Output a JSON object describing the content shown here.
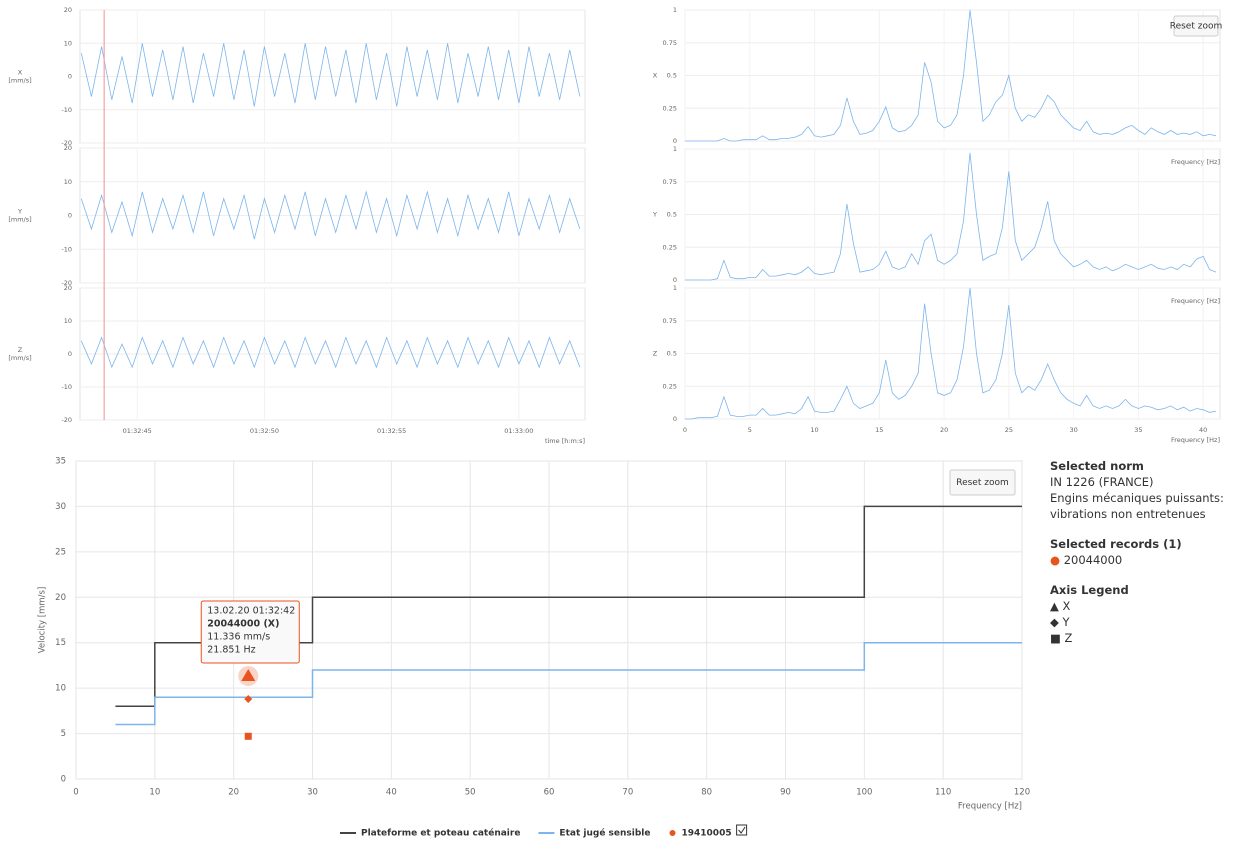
{
  "chart_data": [
    {
      "type": "line",
      "xlabel": "time [h:m:s]",
      "x": [
        5562.8,
        5563.2,
        5563.6,
        5564.0,
        5564.4,
        5564.8,
        5565.2,
        5565.6,
        5566.0,
        5566.4,
        5566.8,
        5567.2,
        5567.6,
        5568.0,
        5568.4,
        5568.8,
        5569.2,
        5569.6,
        5570.0,
        5570.4,
        5570.8,
        5571.2,
        5571.6,
        5572.0,
        5572.4,
        5572.8,
        5573.2,
        5573.6,
        5574.0,
        5574.4,
        5574.8,
        5575.2,
        5575.6,
        5576.0,
        5576.4,
        5576.8,
        5577.2,
        5577.6,
        5578.0,
        5578.4,
        5578.8,
        5579.2,
        5579.6,
        5580.0,
        5580.4,
        5580.8,
        5581.2,
        5581.6,
        5582.0,
        5582.4
      ],
      "xlim": [
        5562.75,
        5582.6
      ],
      "xticks": [
        {
          "value": 5565,
          "label": "01:32:45"
        },
        {
          "value": 5570,
          "label": "01:32:50"
        },
        {
          "value": 5575,
          "label": "01:32:55"
        },
        {
          "value": 5580,
          "label": "01:33:00"
        }
      ],
      "ylim": [
        -20,
        20
      ],
      "yticks": [
        20,
        10,
        0,
        -10,
        -20
      ],
      "cursor_x": 5563.7,
      "cursor_color": "#f5a3a3",
      "grid": true,
      "panels": [
        {
          "name": "X",
          "unit": "[mm/s]",
          "color": "#7cb5ec",
          "values": [
            7,
            -6,
            9,
            -7,
            6,
            -8,
            10,
            -6,
            8,
            -7,
            9,
            -8,
            7,
            -6,
            10,
            -7,
            8,
            -9,
            9,
            -6,
            7,
            -8,
            10,
            -7,
            9,
            -6,
            8,
            -8,
            10,
            -7,
            7,
            -9,
            9,
            -6,
            8,
            -7,
            10,
            -8,
            7,
            -6,
            9,
            -7,
            8,
            -8,
            9,
            -6,
            7,
            -7,
            8,
            -6
          ]
        },
        {
          "name": "Y",
          "unit": "[mm/s]",
          "color": "#7cb5ec",
          "values": [
            5,
            -4,
            6,
            -5,
            4,
            -6,
            7,
            -5,
            5,
            -4,
            6,
            -5,
            7,
            -6,
            5,
            -4,
            6,
            -7,
            5,
            -5,
            6,
            -4,
            7,
            -6,
            5,
            -5,
            6,
            -4,
            7,
            -5,
            5,
            -6,
            6,
            -4,
            7,
            -5,
            5,
            -6,
            6,
            -4,
            5,
            -5,
            7,
            -6,
            5,
            -4,
            6,
            -5,
            5,
            -4
          ]
        },
        {
          "name": "Z",
          "unit": "[mm/s]",
          "color": "#7cb5ec",
          "values": [
            4,
            -3,
            5,
            -4,
            3,
            -4,
            5,
            -3,
            4,
            -4,
            5,
            -3,
            4,
            -4,
            5,
            -3,
            4,
            -4,
            5,
            -3,
            4,
            -4,
            5,
            -3,
            4,
            -4,
            5,
            -3,
            4,
            -4,
            5,
            -3,
            4,
            -4,
            5,
            -3,
            4,
            -4,
            5,
            -3,
            4,
            -4,
            5,
            -3,
            4,
            -4,
            5,
            -3,
            4,
            -4
          ]
        }
      ]
    },
    {
      "type": "line",
      "xlabel": "Frequency [Hz]",
      "reset_zoom": "Reset zoom",
      "x": [
        0,
        0.5,
        1,
        1.5,
        2,
        2.5,
        3,
        3.5,
        4,
        4.5,
        5,
        5.5,
        6,
        6.5,
        7,
        7.5,
        8,
        8.5,
        9,
        9.5,
        10,
        10.5,
        11,
        11.5,
        12,
        12.5,
        13,
        13.5,
        14,
        14.5,
        15,
        15.5,
        16,
        16.5,
        17,
        17.5,
        18,
        18.5,
        19,
        19.5,
        20,
        20.5,
        21,
        21.5,
        22,
        22.5,
        23,
        23.5,
        24,
        24.5,
        25,
        25.5,
        26,
        26.5,
        27,
        27.5,
        28,
        28.5,
        29,
        29.5,
        30,
        30.5,
        31,
        31.5,
        32,
        32.5,
        33,
        33.5,
        34,
        34.5,
        35,
        35.5,
        36,
        36.5,
        37,
        37.5,
        38,
        38.5,
        39,
        39.5,
        40,
        40.5,
        41
      ],
      "xlim": [
        0,
        41.3
      ],
      "xticks": [
        0,
        5,
        10,
        15,
        20,
        25,
        30,
        35,
        40
      ],
      "ylim": [
        0,
        1
      ],
      "yticks": [
        0,
        0.25,
        0.5,
        0.75,
        1
      ],
      "grid": true,
      "panels": [
        {
          "name": "X",
          "color": "#7cb5ec",
          "values": [
            0,
            0,
            0,
            0,
            0,
            0,
            0.02,
            0,
            0,
            0.01,
            0.01,
            0.01,
            0.04,
            0.01,
            0.01,
            0.02,
            0.02,
            0.03,
            0.05,
            0.11,
            0.04,
            0.03,
            0.04,
            0.05,
            0.12,
            0.33,
            0.15,
            0.05,
            0.06,
            0.08,
            0.15,
            0.26,
            0.1,
            0.07,
            0.08,
            0.12,
            0.2,
            0.6,
            0.45,
            0.15,
            0.1,
            0.12,
            0.2,
            0.5,
            1,
            0.6,
            0.15,
            0.2,
            0.3,
            0.35,
            0.5,
            0.25,
            0.15,
            0.2,
            0.18,
            0.25,
            0.35,
            0.3,
            0.2,
            0.15,
            0.1,
            0.08,
            0.15,
            0.07,
            0.05,
            0.06,
            0.05,
            0.07,
            0.1,
            0.12,
            0.08,
            0.05,
            0.1,
            0.07,
            0.05,
            0.08,
            0.05,
            0.06,
            0.05,
            0.07,
            0.04,
            0.05,
            0.04
          ]
        },
        {
          "name": "Y",
          "color": "#7cb5ec",
          "values": [
            0,
            0,
            0,
            0,
            0,
            0.01,
            0.15,
            0.02,
            0.01,
            0.01,
            0.02,
            0.02,
            0.08,
            0.03,
            0.03,
            0.04,
            0.05,
            0.04,
            0.06,
            0.1,
            0.05,
            0.04,
            0.05,
            0.06,
            0.2,
            0.58,
            0.28,
            0.06,
            0.07,
            0.08,
            0.12,
            0.22,
            0.1,
            0.08,
            0.1,
            0.2,
            0.12,
            0.3,
            0.35,
            0.15,
            0.12,
            0.15,
            0.2,
            0.45,
            0.97,
            0.5,
            0.15,
            0.18,
            0.2,
            0.4,
            0.83,
            0.3,
            0.15,
            0.2,
            0.25,
            0.4,
            0.6,
            0.3,
            0.2,
            0.15,
            0.1,
            0.12,
            0.15,
            0.1,
            0.08,
            0.1,
            0.07,
            0.09,
            0.12,
            0.1,
            0.08,
            0.1,
            0.12,
            0.09,
            0.08,
            0.1,
            0.08,
            0.12,
            0.1,
            0.16,
            0.18,
            0.08,
            0.06
          ]
        },
        {
          "name": "Z",
          "color": "#7cb5ec",
          "values": [
            0,
            0,
            0.01,
            0.01,
            0.01,
            0.02,
            0.17,
            0.03,
            0.02,
            0.02,
            0.03,
            0.03,
            0.08,
            0.03,
            0.03,
            0.04,
            0.05,
            0.04,
            0.08,
            0.17,
            0.06,
            0.05,
            0.05,
            0.06,
            0.15,
            0.25,
            0.12,
            0.08,
            0.1,
            0.12,
            0.2,
            0.45,
            0.2,
            0.15,
            0.18,
            0.25,
            0.35,
            0.88,
            0.5,
            0.2,
            0.18,
            0.2,
            0.3,
            0.55,
            1,
            0.5,
            0.2,
            0.22,
            0.3,
            0.5,
            0.87,
            0.35,
            0.2,
            0.25,
            0.22,
            0.3,
            0.42,
            0.3,
            0.2,
            0.15,
            0.12,
            0.1,
            0.18,
            0.1,
            0.08,
            0.1,
            0.08,
            0.1,
            0.15,
            0.1,
            0.08,
            0.1,
            0.09,
            0.07,
            0.08,
            0.1,
            0.07,
            0.09,
            0.06,
            0.08,
            0.07,
            0.05,
            0.06
          ]
        }
      ]
    },
    {
      "type": "step",
      "xlabel": "Frequency [Hz]",
      "ylabel": "Velocity [mm/s]",
      "reset_zoom": "Reset zoom",
      "xlim": [
        0,
        120
      ],
      "xticks": [
        0,
        10,
        20,
        30,
        40,
        50,
        60,
        70,
        80,
        90,
        100,
        110,
        120
      ],
      "ylim": [
        0,
        35
      ],
      "yticks": [
        0,
        5,
        10,
        15,
        20,
        25,
        30,
        35
      ],
      "grid": true,
      "series": [
        {
          "name": "Plateforme et poteau caténaire",
          "color": "#444444",
          "x": [
            5,
            10,
            10,
            30,
            30,
            100,
            100,
            120
          ],
          "values": [
            8,
            8,
            15,
            15,
            20,
            20,
            30,
            30
          ]
        },
        {
          "name": "Etat jugé sensible",
          "color": "#7cb5ec",
          "x": [
            5,
            10,
            10,
            30,
            30,
            100,
            100,
            120
          ],
          "values": [
            6,
            6,
            9,
            9,
            12,
            12,
            15,
            15
          ]
        }
      ],
      "points": {
        "name": "19410005",
        "color": "#e8541e",
        "x": [
          21.851,
          21.851,
          21.851
        ],
        "values": [
          11.336,
          8.8,
          4.7
        ],
        "symbols": [
          "triangle",
          "diamond",
          "square"
        ]
      },
      "tooltip": {
        "date": "13.02.20 01:32:42",
        "record": "20044000 (X)",
        "value": "11.336 mm/s",
        "frequency": "21.851 Hz"
      }
    }
  ],
  "sidebar": {
    "norm_heading": "Selected norm",
    "norm_name": "IN 1226 (FRANCE)",
    "norm_desc": [
      "Engins mécaniques puissants:",
      "vibrations non entretenues"
    ],
    "records_heading": "Selected records (1)",
    "records": [
      "20044000"
    ],
    "axis_heading": "Axis Legend",
    "axes": [
      "X",
      "Y",
      "Z"
    ]
  }
}
